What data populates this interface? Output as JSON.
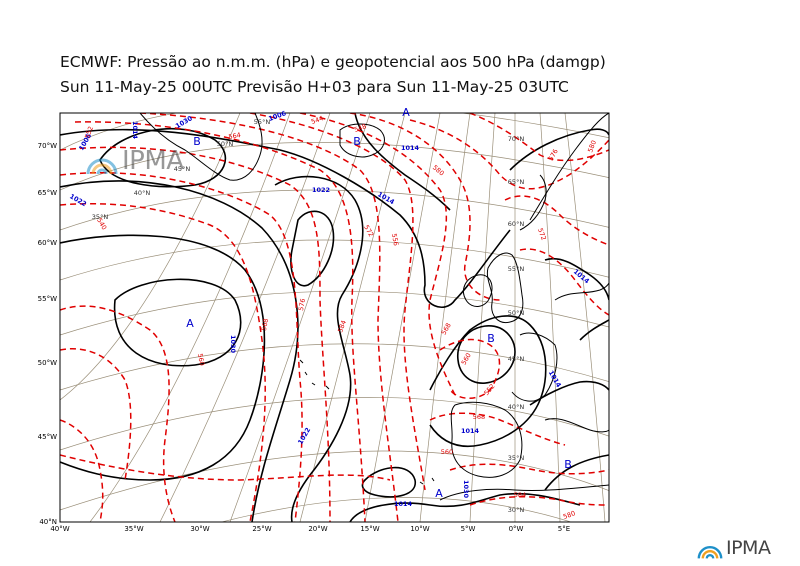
{
  "title": {
    "line1": "ECMWF:  Pressão ao n.m.m. (hPa) e geopotencial aos 500 hPa (damgp)",
    "line2": "Sun 11-May-25 00UTC Previsão H+03 para Sun 11-May-25 03UTC"
  },
  "logo": {
    "text": "IPMA"
  },
  "colors": {
    "isobar": "#000000",
    "geopotential": "#e00000",
    "pressure_label": "#0000cc",
    "graticule": "#9a8f79",
    "coastline": "#000000"
  },
  "axes": {
    "x_ticks": [
      "40°W",
      "35°W",
      "30°W",
      "25°W",
      "20°W",
      "15°W",
      "10°W",
      "5°W",
      "0°W",
      "5°E"
    ],
    "y_ticks": [
      "40°N",
      "45°W",
      "50°W",
      "55°W",
      "60°W",
      "65°W",
      "70°W"
    ]
  },
  "graticule_labels": [
    "55°N",
    "50°N",
    "45°N",
    "40°N",
    "35°N",
    "70°N",
    "65°N",
    "60°N",
    "55°N",
    "50°N",
    "45°N",
    "40°N",
    "35°N",
    "30°N"
  ],
  "pressure_centers": [
    "A",
    "A",
    "A",
    "B",
    "B",
    "B",
    "B"
  ],
  "isobar_labels": [
    "1030",
    "1022",
    "1022",
    "1014",
    "1014",
    "1022",
    "1014",
    "1014",
    "1014",
    "1030",
    "1006",
    "1014",
    "1014",
    "1006",
    "1030"
  ],
  "geopotential_labels": [
    "540",
    "560",
    "568",
    "576",
    "584",
    "552",
    "564",
    "544",
    "548",
    "556",
    "572",
    "580",
    "568",
    "560",
    "552",
    "572",
    "576",
    "580",
    "584",
    "568",
    "560",
    "580"
  ]
}
